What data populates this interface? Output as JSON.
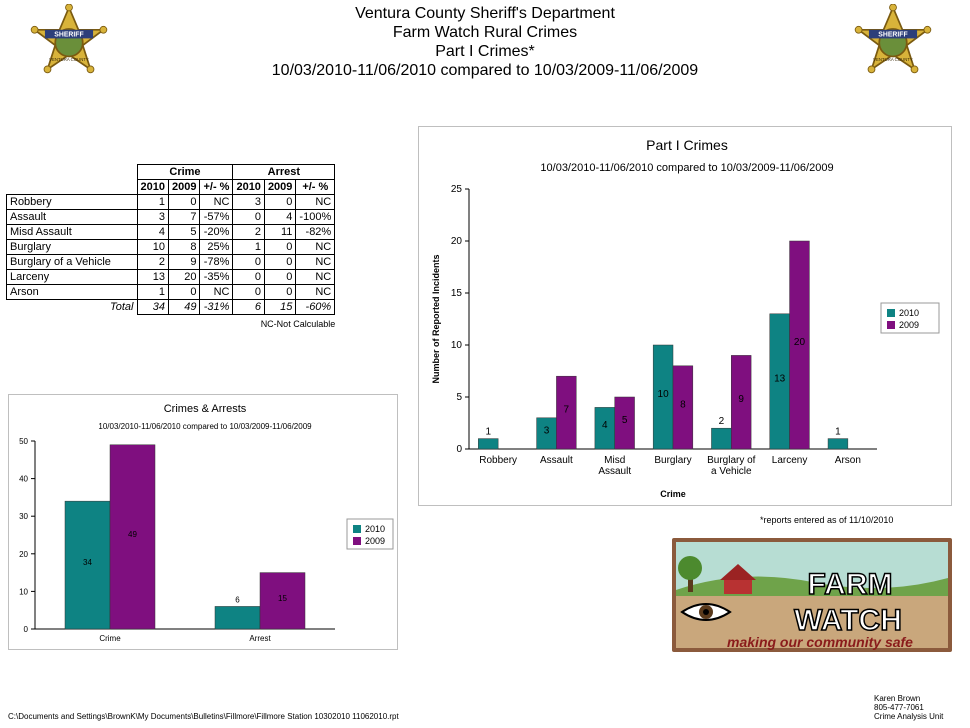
{
  "header": {
    "line1": "Ventura County Sheriff's Department",
    "line2": "Farm Watch Rural Crimes",
    "line3": "Part I Crimes*",
    "line4": "10/03/2010-11/06/2010 compared to 10/03/2009-11/06/2009"
  },
  "badge": {
    "text_top": "SHERIFF",
    "text_bottom": "VENTURA COUNTY"
  },
  "table": {
    "group_crime": "Crime",
    "group_arrest": "Arrest",
    "cols": [
      "2010",
      "2009",
      "+/- %",
      "2010",
      "2009",
      "+/- %"
    ],
    "rows": [
      {
        "label": "Robbery",
        "c2010": "1",
        "c2009": "0",
        "cpct": "NC",
        "a2010": "3",
        "a2009": "0",
        "apct": "NC"
      },
      {
        "label": "Assault",
        "c2010": "3",
        "c2009": "7",
        "cpct": "-57%",
        "a2010": "0",
        "a2009": "4",
        "apct": "-100%"
      },
      {
        "label": "Misd  Assault",
        "c2010": "4",
        "c2009": "5",
        "cpct": "-20%",
        "a2010": "2",
        "a2009": "11",
        "apct": "-82%"
      },
      {
        "label": "Burglary",
        "c2010": "10",
        "c2009": "8",
        "cpct": "25%",
        "a2010": "1",
        "a2009": "0",
        "apct": "NC"
      },
      {
        "label": "Burglary of a Vehicle",
        "c2010": "2",
        "c2009": "9",
        "cpct": "-78%",
        "a2010": "0",
        "a2009": "0",
        "apct": "NC"
      },
      {
        "label": "Larceny",
        "c2010": "13",
        "c2009": "20",
        "cpct": "-35%",
        "a2010": "0",
        "a2009": "0",
        "apct": "NC"
      },
      {
        "label": "Arson",
        "c2010": "1",
        "c2009": "0",
        "cpct": "NC",
        "a2010": "0",
        "a2009": "0",
        "apct": "NC"
      }
    ],
    "total": {
      "label": "Total",
      "c2010": "34",
      "c2009": "49",
      "cpct": "-31%",
      "a2010": "6",
      "a2009": "15",
      "apct": "-60%"
    },
    "note": "NC-Not Calculable"
  },
  "colors": {
    "s2010": "#0e8383",
    "s2009": "#7f0f7f"
  },
  "chart_data": [
    {
      "type": "bar",
      "title": "Part I Crimes",
      "subtitle": "10/03/2010-11/06/2010 compared to 10/03/2009-11/06/2009",
      "xlabel": "Crime",
      "ylabel": "Number of Reported Incidents",
      "ylim": [
        0,
        25
      ],
      "yticks": [
        0,
        5,
        10,
        15,
        20,
        25
      ],
      "categories": [
        [
          "Robbery"
        ],
        [
          "Assault"
        ],
        [
          "Misd",
          "Assault"
        ],
        [
          "Burglary"
        ],
        [
          "Burglary of",
          "a Vehicle"
        ],
        [
          "Larceny"
        ],
        [
          "Arson"
        ]
      ],
      "series": [
        {
          "name": "2010",
          "values": [
            1,
            3,
            4,
            10,
            2,
            13,
            1
          ]
        },
        {
          "name": "2009",
          "values": [
            0,
            7,
            5,
            8,
            9,
            20,
            0
          ]
        }
      ],
      "grid": false,
      "legend": "right"
    },
    {
      "type": "bar",
      "title": "Crimes & Arrests",
      "subtitle": "10/03/2010-11/06/2010 compared to 10/03/2009-11/06/2009",
      "xlabel": "",
      "ylabel": "",
      "ylim": [
        0,
        50
      ],
      "yticks": [
        0,
        10,
        20,
        30,
        40,
        50
      ],
      "categories": [
        [
          "Crime"
        ],
        [
          "Arrest"
        ]
      ],
      "series": [
        {
          "name": "2010",
          "values": [
            34,
            6
          ]
        },
        {
          "name": "2009",
          "values": [
            49,
            15
          ]
        }
      ],
      "grid": false,
      "legend": "right"
    }
  ],
  "report_note": "*reports entered as of 11/10/2010",
  "logo": {
    "word1": "FARM",
    "word2": "WATCH",
    "tagline": "making our community safe"
  },
  "footer": {
    "path": "C:\\Documents and Settings\\BrownK\\My Documents\\Bulletins\\Fillmore\\Fillmore Station 10302010 11062010.rpt",
    "name": "Karen Brown",
    "phone": "805-477-7061",
    "unit": "Crime Analysis Unit"
  }
}
